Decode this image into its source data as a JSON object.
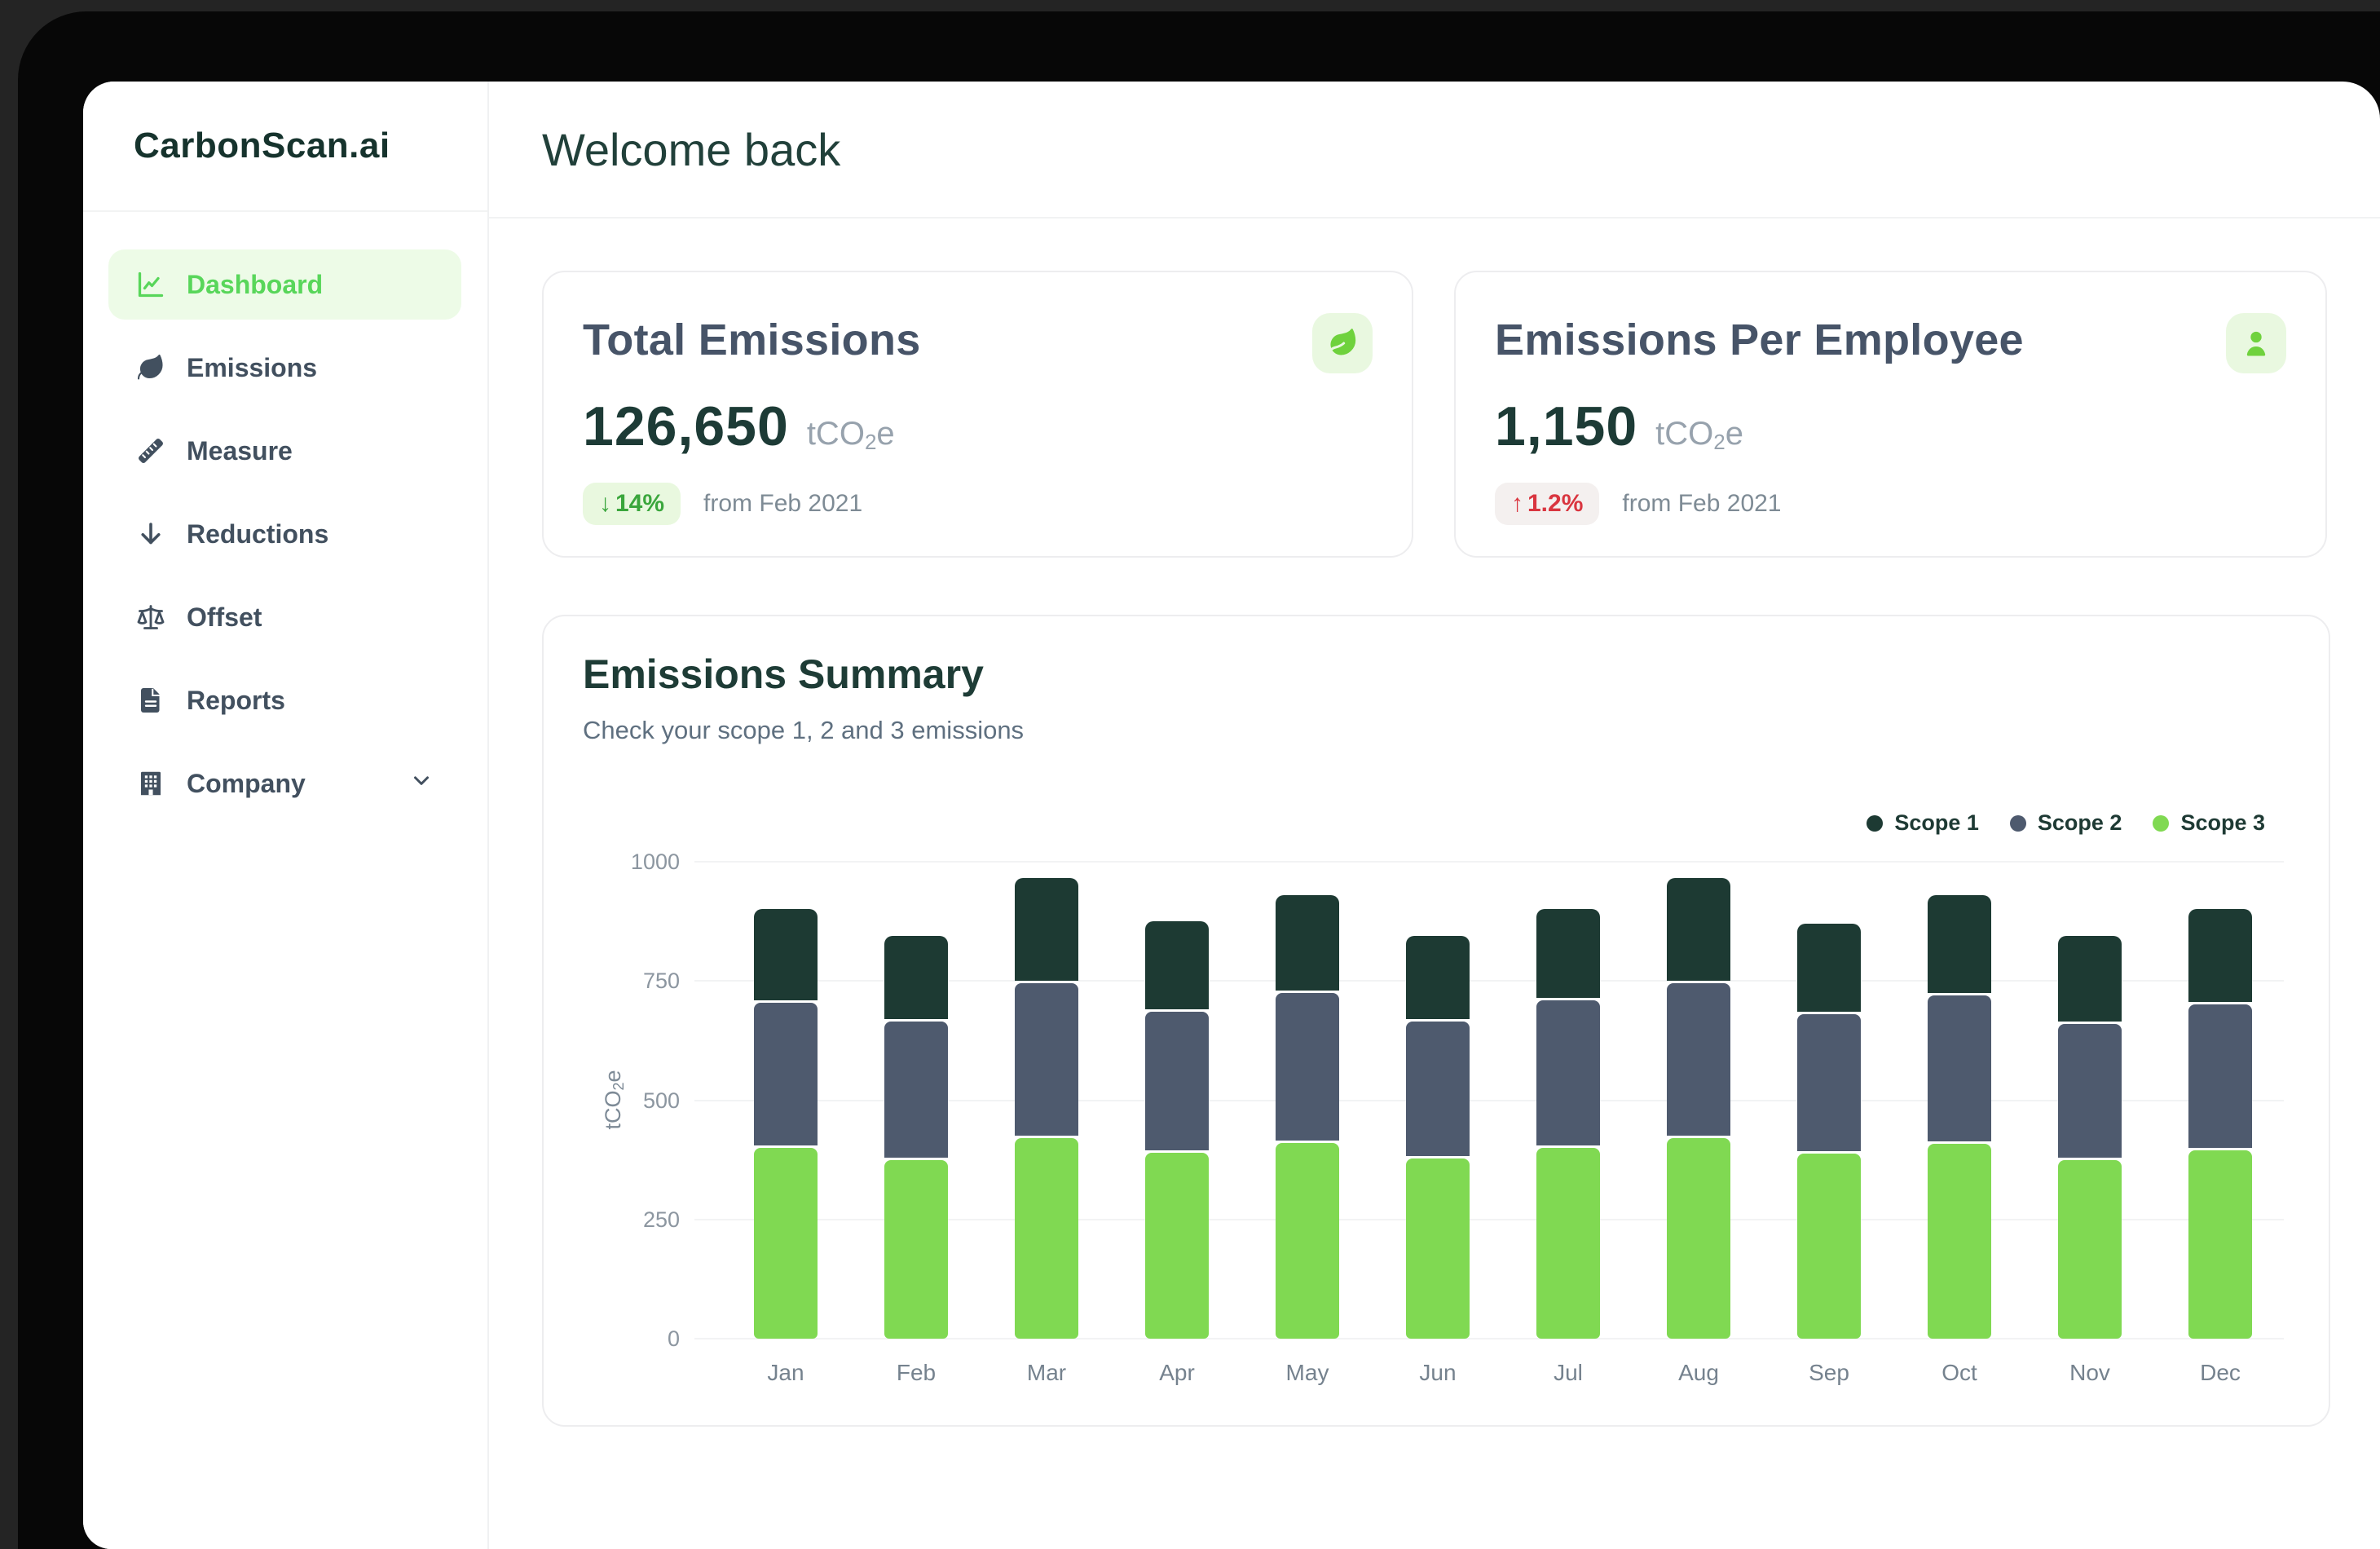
{
  "brand": {
    "logo": "CarbonScan.ai"
  },
  "sidebar": {
    "items": [
      {
        "label": "Dashboard",
        "icon": "chart-line-icon",
        "active": true
      },
      {
        "label": "Emissions",
        "icon": "leaf-icon",
        "active": false
      },
      {
        "label": "Measure",
        "icon": "ruler-icon",
        "active": false
      },
      {
        "label": "Reductions",
        "icon": "arrow-down-icon",
        "active": false
      },
      {
        "label": "Offset",
        "icon": "scale-icon",
        "active": false
      },
      {
        "label": "Reports",
        "icon": "file-text-icon",
        "active": false
      },
      {
        "label": "Company",
        "icon": "building-icon",
        "active": false,
        "chevron": "chevron-down-icon"
      }
    ]
  },
  "header": {
    "title": "Welcome back"
  },
  "cards": [
    {
      "title": "Total Emissions",
      "value": "126,650",
      "unit_pre": "tCO",
      "unit_sub": "2",
      "unit_post": "e",
      "delta_arrow": "↓",
      "delta_value": "14%",
      "delta_direction": "down",
      "delta_text_color": "#3aa63c",
      "delta_bg": "#e9f8df",
      "period": "from Feb 2021",
      "icon": "leaf-badge-icon"
    },
    {
      "title": "Emissions Per Employee",
      "value": "1,150",
      "unit_pre": "tCO",
      "unit_sub": "2",
      "unit_post": "e",
      "delta_arrow": "↑",
      "delta_value": "1.2%",
      "delta_direction": "up",
      "delta_text_color": "#d9353f",
      "delta_bg": "#f4f0ef",
      "period": "from Feb 2021",
      "icon": "person-badge-icon"
    }
  ],
  "chart_card": {
    "title": "Emissions Summary",
    "subtitle": "Check your scope 1, 2 and 3 emissions"
  },
  "chart_data": {
    "type": "bar",
    "stacked": true,
    "title": "Emissions Summary",
    "categories": [
      "Jan",
      "Feb",
      "Mar",
      "Apr",
      "May",
      "Jun",
      "Jul",
      "Aug",
      "Sep",
      "Oct",
      "Nov",
      "Dec"
    ],
    "series": [
      {
        "name": "Scope 1",
        "color": "#1d3a33",
        "values": [
          190,
          175,
          215,
          185,
          200,
          175,
          185,
          215,
          185,
          205,
          180,
          195
        ]
      },
      {
        "name": "Scope 2",
        "color": "#4e5a6e",
        "values": [
          300,
          285,
          320,
          290,
          310,
          282,
          305,
          320,
          287,
          307,
          280,
          300
        ]
      },
      {
        "name": "Scope 3",
        "color": "#80d952",
        "values": [
          400,
          375,
          420,
          390,
          410,
          378,
          400,
          420,
          388,
          408,
          375,
          395
        ]
      }
    ],
    "stack_bottom_to_top": [
      "Scope 3",
      "Scope 2",
      "Scope 1"
    ],
    "xlabel": "",
    "ylabel": "tCO2e",
    "ylabel_parts": {
      "pre": "tCO",
      "sub": "2",
      "post": "e"
    },
    "yticks": [
      0,
      250,
      500,
      750,
      1000
    ],
    "ylim": [
      0,
      1000
    ],
    "grid": true,
    "legend_position": "top-right"
  },
  "colors": {
    "accent_green": "#58d65a",
    "active_item_bg": "#edfbe7",
    "icon_green": "#6fd23d",
    "icon_bg": "#e9f8e0",
    "heading_teal": "#1e3c36",
    "title_slate": "#475468",
    "muted_gray": "#7e8b95"
  }
}
